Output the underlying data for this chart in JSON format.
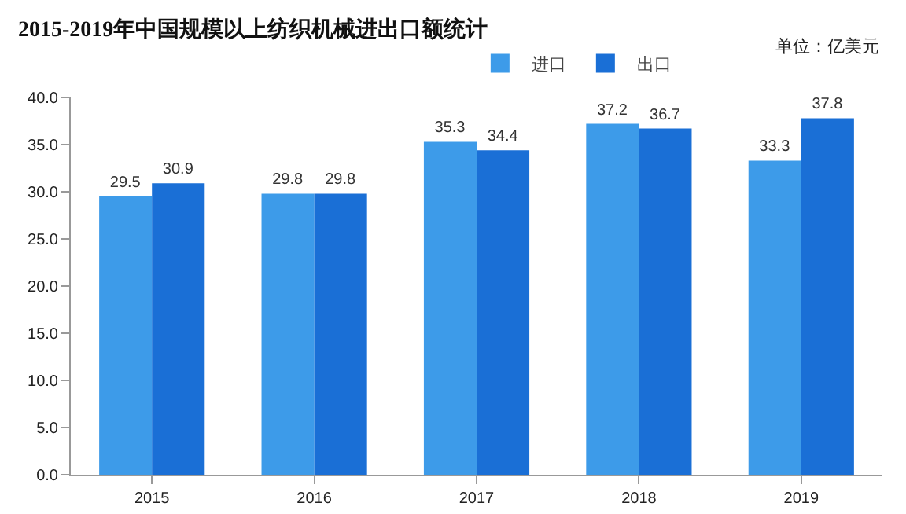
{
  "chart_data": {
    "type": "bar",
    "title": "2015-2019年中国规模以上纺织机械进出口额统计",
    "annotations": [
      "单位：亿美元"
    ],
    "categories": [
      "2015",
      "2016",
      "2017",
      "2018",
      "2019"
    ],
    "series": [
      {
        "name": "进口",
        "color": "#3d9be9",
        "values": [
          29.5,
          29.8,
          35.3,
          37.2,
          33.3
        ]
      },
      {
        "name": "出口",
        "color": "#1a6fd6",
        "values": [
          30.9,
          29.8,
          34.4,
          36.7,
          37.8
        ]
      }
    ],
    "ylim": [
      0,
      40
    ],
    "yticks": [
      {
        "value": 0,
        "label": "0.0"
      },
      {
        "value": 5,
        "label": "5.0"
      },
      {
        "value": 10,
        "label": "10.0"
      },
      {
        "value": 15,
        "label": "15.0"
      },
      {
        "value": 20,
        "label": "20.0"
      },
      {
        "value": 25,
        "label": "25.0"
      },
      {
        "value": 30,
        "label": "30.0"
      },
      {
        "value": 35,
        "label": "35.0"
      },
      {
        "value": 40,
        "label": "40.0"
      }
    ],
    "data_labels": true,
    "legend": "top",
    "grid": false
  }
}
